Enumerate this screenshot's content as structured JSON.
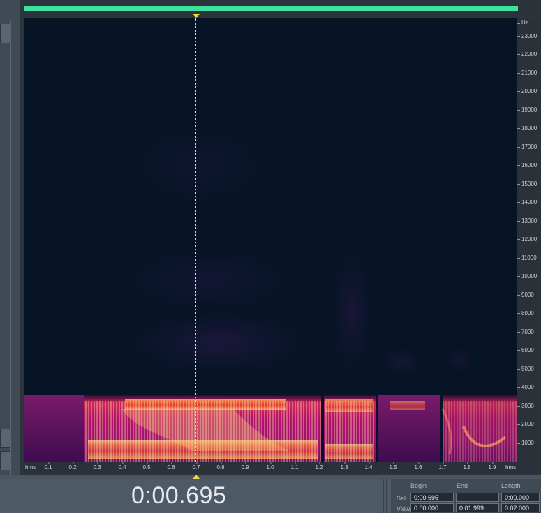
{
  "spectrogram": {
    "freq_unit": "Hz",
    "freq_ticks": [
      "23000",
      "22000",
      "21000",
      "20000",
      "19000",
      "18000",
      "17000",
      "16000",
      "15000",
      "14000",
      "13000",
      "12000",
      "11000",
      "10000",
      "9000",
      "8000",
      "7000",
      "6000",
      "5000",
      "4000",
      "3000",
      "2000",
      "1000"
    ],
    "time_unit_left": "hms",
    "time_unit_right": "hms",
    "time_ticks": [
      "0.1",
      "0.2",
      "0.3",
      "0.4",
      "0.5",
      "0.6",
      "0.7",
      "0.8",
      "0.9",
      "1.0",
      "1.1",
      "1.2",
      "1.3",
      "1.4",
      "1.5",
      "1.6",
      "1.7",
      "1.8",
      "1.9"
    ]
  },
  "transport": {
    "current_time": "0:00.695"
  },
  "selection": {
    "headers": {
      "begin": "Begin",
      "end": "End",
      "length": "Length"
    },
    "sel_label": "Sel",
    "view_label": "View",
    "sel_begin": "0:00.695",
    "sel_end": "",
    "sel_length": "0:00.000",
    "view_begin": "0:00.000",
    "view_end": "0:01.999",
    "view_length": "0:02.000"
  },
  "colors": {
    "overview_bar": "#3ee0a0",
    "playhead": "#f7d63a",
    "spectrogram_bg": "#061425"
  }
}
